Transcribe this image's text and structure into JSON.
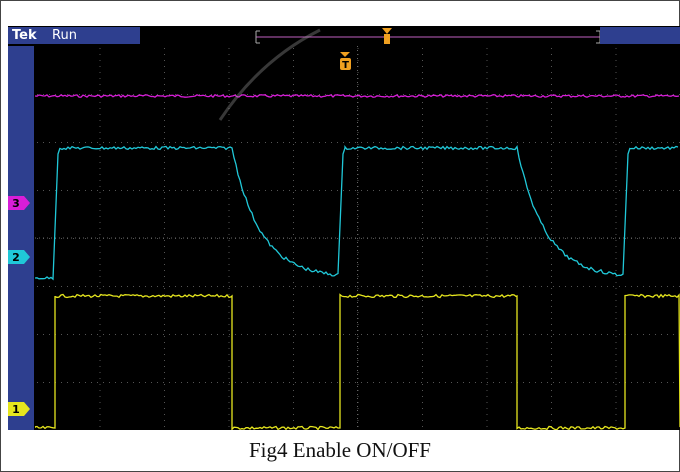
{
  "scope": {
    "brand": "Tek",
    "status": "Run",
    "trigger_marker": "T",
    "channel_markers": [
      {
        "label": "3",
        "color": "#d81ed8"
      },
      {
        "label": "2",
        "color": "#20c8d8"
      },
      {
        "label": "1",
        "color": "#e6e61e"
      }
    ],
    "colors": {
      "ch1": "#e6e61e",
      "ch2": "#20c8d8",
      "ch3": "#d81ed8",
      "trigger": "#f0a020",
      "frame_blue": "#2e3f8f"
    }
  },
  "caption": "Fig4 Enable ON/OFF"
}
